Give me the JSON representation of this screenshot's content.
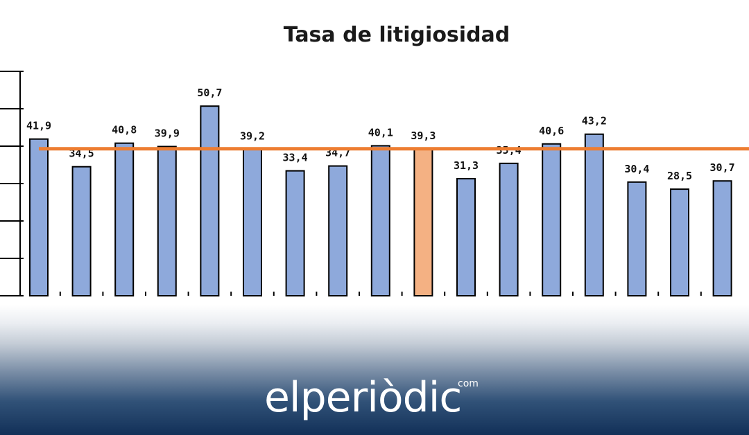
{
  "chart_data": {
    "type": "bar",
    "title": "Tasa de litigiosidad",
    "xlabel": "",
    "ylabel": "",
    "ylim": [
      0,
      60
    ],
    "categories": [
      "",
      "",
      "",
      "",
      "",
      "",
      "",
      "",
      "",
      "",
      "",
      "",
      "",
      "",
      "",
      "",
      ""
    ],
    "values": [
      41.9,
      34.5,
      40.8,
      39.9,
      50.7,
      39.2,
      33.4,
      34.7,
      40.1,
      39.3,
      31.3,
      35.4,
      40.6,
      43.2,
      30.4,
      28.5,
      30.7
    ],
    "labels": [
      "41,9",
      "34,5",
      "40,8",
      "39,9",
      "50,7",
      "39,2",
      "33,4",
      "34,7",
      "40,1",
      "39,3",
      "31,3",
      "35,4",
      "40,6",
      "43,2",
      "30,4",
      "28,5",
      "30,7"
    ],
    "highlight_index": 9,
    "reference_line": 39.3,
    "bar_color": "#8ea9db",
    "highlight_color": "#f4b183",
    "line_color": "#ed7d31",
    "grid": false,
    "legend": "none"
  },
  "brand": {
    "name": "elperiòdic",
    "suffix": "com"
  }
}
